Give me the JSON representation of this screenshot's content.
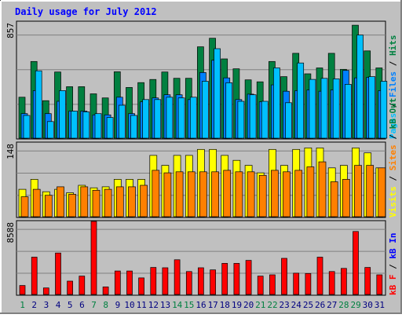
{
  "title": "Daily usage for July 2012",
  "colors": {
    "background": "#c0c0c0",
    "title": "#0000ff",
    "hits": "#008040",
    "files": "#0080ff",
    "pages": "#00c0ff",
    "visits": "#ffff00",
    "sites": "#ff8000",
    "kbytes": "#ff0000",
    "weekend_label": "#008040",
    "weekday_label": "#000080"
  },
  "chart_data": [
    {
      "type": "bar",
      "title": "Daily usage for July 2012",
      "ymax_label": "857",
      "ylim": [
        0,
        857
      ],
      "grid": true,
      "legend": [
        {
          "name": "Pages",
          "color": "#00c0ff"
        },
        {
          "name": "Files",
          "color": "#0080ff"
        },
        {
          "name": "Hits",
          "color": "#008040"
        }
      ],
      "categories": [
        "1",
        "2",
        "3",
        "4",
        "5",
        "6",
        "7",
        "8",
        "9",
        "10",
        "11",
        "12",
        "13",
        "14",
        "15",
        "16",
        "17",
        "18",
        "19",
        "20",
        "21",
        "22",
        "23",
        "24",
        "25",
        "26",
        "27",
        "28",
        "29",
        "30",
        "31"
      ],
      "series": [
        {
          "name": "Hits",
          "values": [
            302,
            566,
            277,
            488,
            380,
            380,
            327,
            297,
            490,
            374,
            410,
            433,
            488,
            442,
            442,
            674,
            737,
            585,
            512,
            430,
            416,
            566,
            454,
            626,
            475,
            518,
            626,
            508,
            833,
            644,
            518
          ]
        },
        {
          "name": "Files",
          "values": [
            181,
            351,
            181,
            272,
            200,
            200,
            172,
            172,
            302,
            181,
            268,
            297,
            320,
            320,
            285,
            484,
            575,
            445,
            285,
            325,
            268,
            393,
            346,
            351,
            356,
            346,
            356,
            500,
            445,
            449,
            351
          ]
        },
        {
          "name": "Pages",
          "values": [
            168,
            497,
            123,
            351,
            200,
            194,
            181,
            153,
            243,
            168,
            285,
            285,
            302,
            297,
            302,
            420,
            660,
            409,
            272,
            320,
            272,
            519,
            262,
            555,
            434,
            441,
            438,
            397,
            761,
            454,
            420
          ]
        }
      ]
    },
    {
      "type": "bar",
      "ymax_label": "148",
      "ylim": [
        0,
        148
      ],
      "grid": true,
      "legend": [
        {
          "name": "Visits",
          "color": "#ffff00"
        },
        {
          "name": "Sites",
          "color": "#ff8000"
        },
        {
          "name": "kB Out",
          "color": "#008040"
        }
      ],
      "categories": [
        "1",
        "2",
        "3",
        "4",
        "5",
        "6",
        "7",
        "8",
        "9",
        "10",
        "11",
        "12",
        "13",
        "14",
        "15",
        "16",
        "17",
        "18",
        "19",
        "20",
        "21",
        "22",
        "23",
        "24",
        "25",
        "26",
        "27",
        "28",
        "29",
        "30",
        "31"
      ],
      "series": [
        {
          "name": "Visits",
          "values": [
            55,
            75,
            50,
            55,
            48,
            63,
            58,
            60,
            75,
            75,
            75,
            123,
            103,
            123,
            123,
            135,
            135,
            123,
            113,
            103,
            88,
            135,
            103,
            135,
            138,
            138,
            98,
            103,
            138,
            128,
            98
          ]
        },
        {
          "name": "Sites",
          "values": [
            40,
            55,
            43,
            60,
            45,
            60,
            53,
            55,
            60,
            60,
            63,
            93,
            88,
            90,
            90,
            90,
            90,
            93,
            90,
            90,
            83,
            93,
            90,
            93,
            100,
            110,
            70,
            75,
            103,
            103,
            98
          ]
        }
      ]
    },
    {
      "type": "bar",
      "ymax_label": "8588",
      "ylim": [
        0,
        8588
      ],
      "grid": true,
      "legend": [
        {
          "name": "kB F",
          "color": "#ff0000"
        },
        {
          "name": "kB In",
          "color": "#0000ff"
        }
      ],
      "categories": [
        "1",
        "2",
        "3",
        "4",
        "5",
        "6",
        "7",
        "8",
        "9",
        "10",
        "11",
        "12",
        "13",
        "14",
        "15",
        "16",
        "17",
        "18",
        "19",
        "20",
        "21",
        "22",
        "23",
        "24",
        "25",
        "26",
        "27",
        "28",
        "29",
        "30",
        "31"
      ],
      "series": [
        {
          "name": "kB F",
          "values": [
            1050,
            4390,
            770,
            4880,
            1570,
            2160,
            8588,
            890,
            2760,
            2760,
            1950,
            3180,
            3140,
            4080,
            2700,
            3140,
            2890,
            3660,
            3660,
            4010,
            2160,
            2310,
            4250,
            2500,
            2470,
            4390,
            2700,
            3070,
            7410,
            3180,
            2310
          ]
        }
      ]
    }
  ]
}
